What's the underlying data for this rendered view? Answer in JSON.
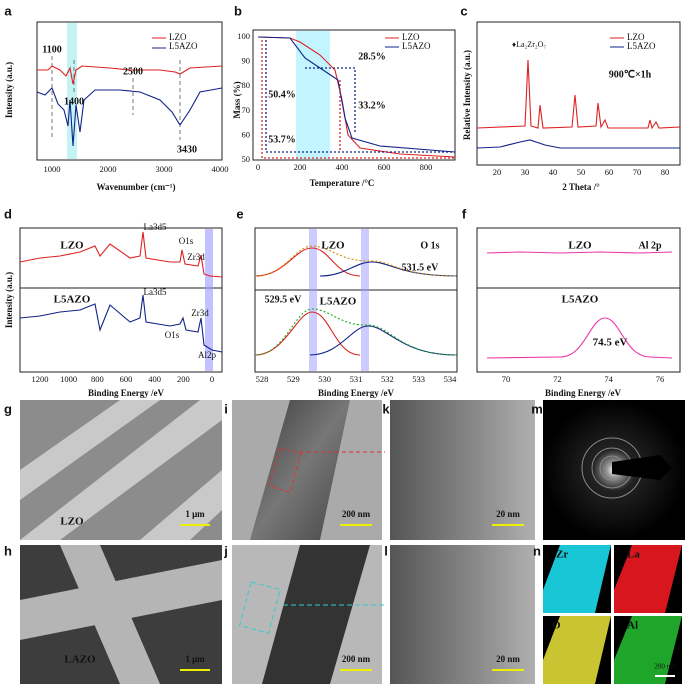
{
  "panels": {
    "a": {
      "label": "a",
      "legend": [
        "LZO",
        "L5AZO"
      ],
      "peaks": [
        "1100",
        "1400",
        "2500",
        "3430"
      ],
      "xticks": [
        "1000",
        "2000",
        "3000",
        "4000"
      ],
      "xlabel": "Wavenumber (cm⁻¹)",
      "ylabel": "Intensity (a.u.)"
    },
    "b": {
      "label": "b",
      "legend": [
        "LZO",
        "L5AZO"
      ],
      "annotations": [
        "28.5%",
        "50.4%",
        "33.2%",
        "53.7%"
      ],
      "xticks": [
        "0",
        "200",
        "400",
        "600",
        "800"
      ],
      "yticks": [
        "100",
        "90",
        "80",
        "70",
        "60",
        "50"
      ],
      "xlabel": "Temperature /°C",
      "ylabel": "Mass (%)"
    },
    "c": {
      "label": "c",
      "legend": [
        "LZO",
        "L5AZO"
      ],
      "phase": "♦La₂Zr₂O₇",
      "condition": "900℃×1h",
      "xticks": [
        "20",
        "30",
        "40",
        "50",
        "60",
        "70",
        "80"
      ],
      "xlabel": "2 Theta /°",
      "ylabel": "Relative Intensity (a.u.)"
    },
    "d": {
      "label": "d",
      "annotations": [
        "LZO",
        "La3d5",
        "O1s",
        "Zr3d",
        "L5AZO",
        "La3d5",
        "Zr3d",
        "O1s",
        "Al2p"
      ],
      "xticks": [
        "1200",
        "1000",
        "800",
        "600",
        "400",
        "200",
        "0"
      ],
      "xlabel": "Binding Energy /eV",
      "ylabel": "Intensity (a.u.)"
    },
    "e": {
      "label": "e",
      "annotations": [
        "LZO",
        "O 1s",
        "531.5 eV",
        "L5AZO",
        "529.5 eV"
      ],
      "xticks": [
        "528",
        "529",
        "530",
        "531",
        "532",
        "533",
        "534"
      ],
      "xlabel": "Binding Energy /eV"
    },
    "f": {
      "label": "f",
      "annotations": [
        "LZO",
        "Al 2p",
        "L5AZO",
        "74.5 eV"
      ],
      "xticks": [
        "70",
        "72",
        "74",
        "76"
      ],
      "xlabel": "Binding Energy /eV"
    },
    "g": {
      "label": "g",
      "sample": "LZO",
      "scale": "1 μm"
    },
    "h": {
      "label": "h",
      "sample": "LAZO",
      "scale": "1 μm"
    },
    "i": {
      "label": "i",
      "scale": "200 nm"
    },
    "j": {
      "label": "j",
      "scale": "200 nm"
    },
    "k": {
      "label": "k",
      "scale": "20 nm"
    },
    "l": {
      "label": "l",
      "scale": "20 nm"
    },
    "m": {
      "label": "m"
    },
    "n": {
      "label": "n",
      "elements": [
        "Zr",
        "La",
        "O",
        "Al"
      ],
      "scale": "200 nm"
    }
  }
}
